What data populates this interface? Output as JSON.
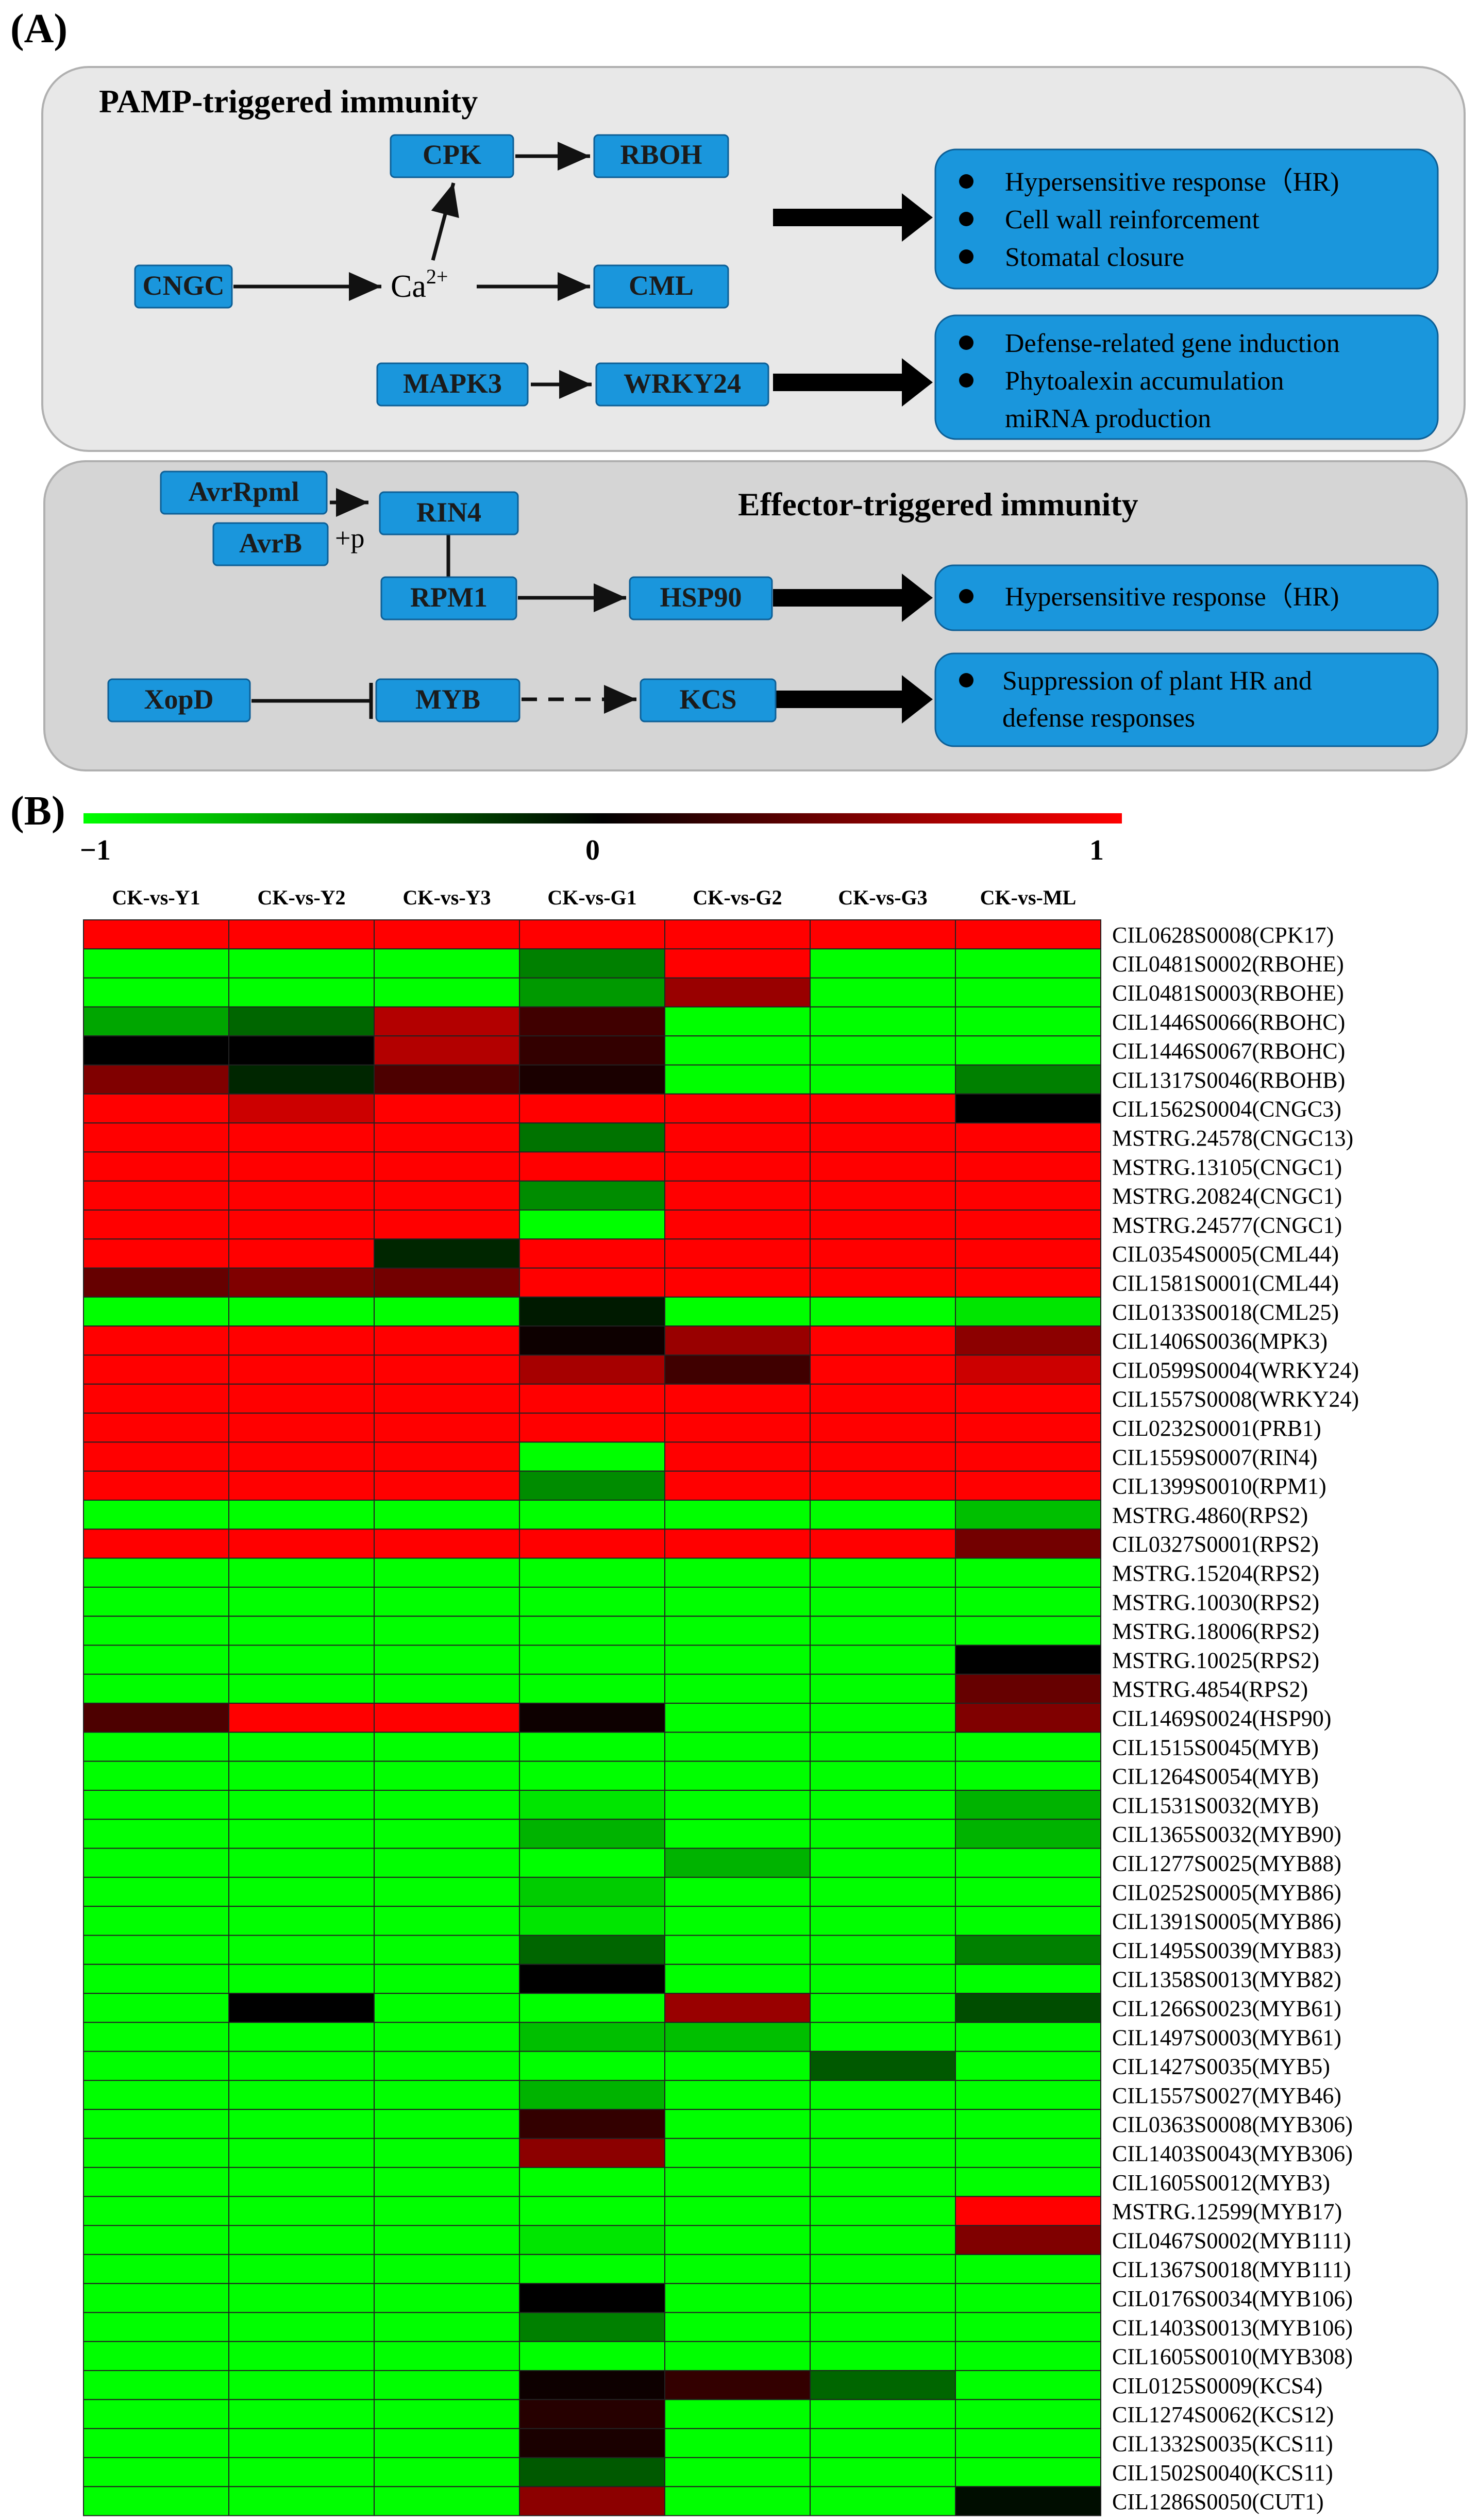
{
  "panelA": {
    "label": "(A)",
    "pti_title": "PAMP-triggered immunity",
    "eti_title": "Effector-triggered immunity",
    "nodes": {
      "cpk": "CPK",
      "rboh": "RBOH",
      "cngc": "CNGC",
      "ca": "Ca",
      "ca_sup": "2+",
      "cml": "CML",
      "mapk3": "MAPK3",
      "wrky24": "WRKY24",
      "avrrpml": "AvrRpml",
      "avrb": "AvrB",
      "plus_p": "+p",
      "rin4": "RIN4",
      "rpm1": "RPM1",
      "hsp90": "HSP90",
      "xopd": "XopD",
      "myb": "MYB",
      "kcs": "KCS"
    },
    "outcome1": [
      "Hypersensitive response（HR)",
      "Cell wall reinforcement",
      "Stomatal closure"
    ],
    "outcome2": [
      "Defense-related gene induction",
      "Phytoalexin accumulation",
      "miRNA production"
    ],
    "outcome3": [
      "Hypersensitive response（HR)"
    ],
    "outcome4": [
      "Suppression of plant HR and",
      "defense responses"
    ]
  },
  "panelB": {
    "label": "(B)",
    "scale_min": "−1",
    "scale_mid": "0",
    "scale_max": "1",
    "colors": {
      "low": "#00ff00",
      "mid": "#000000",
      "high": "#ff0000",
      "box": "#1a96dc",
      "bg_pti": "#e8e8e8",
      "bg_eti": "#d5d5d5"
    }
  },
  "chart_data": {
    "type": "heatmap",
    "vmin": -1,
    "vmax": 1,
    "columns": [
      "CK-vs-Y1",
      "CK-vs-Y2",
      "CK-vs-Y3",
      "CK-vs-G1",
      "CK-vs-G2",
      "CK-vs-G3",
      "CK-vs-ML"
    ],
    "rows": [
      {
        "gene": "CIL0628S0008(CPK17)",
        "values": [
          1,
          1,
          1,
          1,
          1,
          1,
          1
        ]
      },
      {
        "gene": "CIL0481S0002(RBOHE)",
        "values": [
          -1,
          -1,
          -1,
          -0.5,
          1,
          -1,
          -1
        ]
      },
      {
        "gene": "CIL0481S0003(RBOHE)",
        "values": [
          -1,
          -1,
          -1,
          -0.6,
          0.6,
          -1,
          -1
        ]
      },
      {
        "gene": "CIL1446S0066(RBOHC)",
        "values": [
          -0.65,
          -0.4,
          0.7,
          0.25,
          -1,
          -1,
          -1
        ]
      },
      {
        "gene": "CIL1446S0067(RBOHC)",
        "values": [
          0,
          0,
          0.7,
          0.2,
          -1,
          -1,
          -1
        ]
      },
      {
        "gene": "CIL1317S0046(RBOHB)",
        "values": [
          0.5,
          -0.15,
          0.3,
          0.1,
          -1,
          -1,
          -0.5
        ]
      },
      {
        "gene": "CIL1562S0004(CNGC3)",
        "values": [
          1,
          0.8,
          1,
          1,
          1,
          1,
          0
        ]
      },
      {
        "gene": "MSTRG.24578(CNGC13)",
        "values": [
          1,
          1,
          1,
          -0.45,
          1,
          1,
          1
        ]
      },
      {
        "gene": "MSTRG.13105(CNGC1)",
        "values": [
          1,
          1,
          1,
          1,
          1,
          1,
          1
        ]
      },
      {
        "gene": "MSTRG.20824(CNGC1)",
        "values": [
          1,
          1,
          1,
          -0.55,
          1,
          1,
          1
        ]
      },
      {
        "gene": "MSTRG.24577(CNGC1)",
        "values": [
          1,
          1,
          1,
          -1,
          1,
          1,
          1
        ]
      },
      {
        "gene": "CIL0354S0005(CML44)",
        "values": [
          1,
          1,
          -0.15,
          1,
          1,
          1,
          1
        ]
      },
      {
        "gene": "CIL1581S0001(CML44)",
        "values": [
          0.4,
          0.5,
          0.45,
          1,
          1,
          1,
          1
        ]
      },
      {
        "gene": "CIL0133S0018(CML25)",
        "values": [
          -1,
          -1,
          -1,
          -0.1,
          -1,
          -1,
          -0.9
        ]
      },
      {
        "gene": "CIL1406S0036(MPK3)",
        "values": [
          1,
          1,
          1,
          0.05,
          0.6,
          1,
          0.55
        ]
      },
      {
        "gene": "CIL0599S0004(WRKY24)",
        "values": [
          1,
          1,
          1,
          0.65,
          0.25,
          1,
          0.8
        ]
      },
      {
        "gene": "CIL1557S0008(WRKY24)",
        "values": [
          1,
          1,
          1,
          1,
          1,
          1,
          1
        ]
      },
      {
        "gene": "CIL0232S0001(PRB1)",
        "values": [
          1,
          1,
          1,
          1,
          1,
          1,
          1
        ]
      },
      {
        "gene": "CIL1559S0007(RIN4)",
        "values": [
          1,
          1,
          1,
          -1,
          1,
          1,
          1
        ]
      },
      {
        "gene": "CIL1399S0010(RPM1)",
        "values": [
          1,
          1,
          1,
          -0.55,
          1,
          1,
          1
        ]
      },
      {
        "gene": "MSTRG.4860(RPS2)",
        "values": [
          -1,
          -1,
          -1,
          -1,
          -1,
          -1,
          -0.75
        ]
      },
      {
        "gene": "CIL0327S0001(RPS2)",
        "values": [
          1,
          1,
          1,
          1,
          1,
          1,
          0.45
        ]
      },
      {
        "gene": "MSTRG.15204(RPS2)",
        "values": [
          -1,
          -1,
          -1,
          -1,
          -1,
          -1,
          -1
        ]
      },
      {
        "gene": "MSTRG.10030(RPS2)",
        "values": [
          -1,
          -1,
          -1,
          -1,
          -1,
          -1,
          -1
        ]
      },
      {
        "gene": "MSTRG.18006(RPS2)",
        "values": [
          -1,
          -1,
          -1,
          -1,
          -1,
          -1,
          -1
        ]
      },
      {
        "gene": "MSTRG.10025(RPS2)",
        "values": [
          -1,
          -1,
          -1,
          -1,
          -1,
          -1,
          0
        ]
      },
      {
        "gene": "MSTRG.4854(RPS2)",
        "values": [
          -1,
          -1,
          -1,
          -1,
          -1,
          -1,
          0.4
        ]
      },
      {
        "gene": "CIL1469S0024(HSP90)",
        "values": [
          0.3,
          1,
          1,
          0.05,
          -1,
          -1,
          0.5
        ]
      },
      {
        "gene": "CIL1515S0045(MYB)",
        "values": [
          -1,
          -1,
          -1,
          -1,
          -1,
          -1,
          -1
        ]
      },
      {
        "gene": "CIL1264S0054(MYB)",
        "values": [
          -1,
          -1,
          -1,
          -1,
          -1,
          -1,
          -1
        ]
      },
      {
        "gene": "CIL1531S0032(MYB)",
        "values": [
          -1,
          -1,
          -1,
          -0.9,
          -1,
          -1,
          -0.7
        ]
      },
      {
        "gene": "CIL1365S0032(MYB90)",
        "values": [
          -1,
          -1,
          -1,
          -0.7,
          -1,
          -1,
          -0.7
        ]
      },
      {
        "gene": "CIL1277S0025(MYB88)",
        "values": [
          -1,
          -1,
          -1,
          -1,
          -0.7,
          -1,
          -1
        ]
      },
      {
        "gene": "CIL0252S0005(MYB86)",
        "values": [
          -1,
          -1,
          -1,
          -0.8,
          -1,
          -1,
          -1
        ]
      },
      {
        "gene": "CIL1391S0005(MYB86)",
        "values": [
          -1,
          -1,
          -1,
          -0.9,
          -1,
          -1,
          -1
        ]
      },
      {
        "gene": "CIL1495S0039(MYB83)",
        "values": [
          -1,
          -1,
          -1,
          -0.4,
          -1,
          -1,
          -0.5
        ]
      },
      {
        "gene": "CIL1358S0013(MYB82)",
        "values": [
          -1,
          -1,
          -1,
          0,
          -1,
          -1,
          -1
        ]
      },
      {
        "gene": "CIL1266S0023(MYB61)",
        "values": [
          -1,
          0,
          -1,
          -1,
          0.6,
          -1,
          -0.3
        ]
      },
      {
        "gene": "CIL1497S0003(MYB61)",
        "values": [
          -1,
          -1,
          -1,
          -0.75,
          -0.75,
          -1,
          -1
        ]
      },
      {
        "gene": "CIL1427S0035(MYB5)",
        "values": [
          -1,
          -1,
          -1,
          -1,
          -1,
          -0.35,
          -1
        ]
      },
      {
        "gene": "CIL1557S0027(MYB46)",
        "values": [
          -1,
          -1,
          -1,
          -0.7,
          -1,
          -1,
          -1
        ]
      },
      {
        "gene": "CIL0363S0008(MYB306)",
        "values": [
          -1,
          -1,
          -1,
          0.2,
          -1,
          -1,
          -1
        ]
      },
      {
        "gene": "CIL1403S0043(MYB306)",
        "values": [
          -1,
          -1,
          -1,
          0.55,
          -1,
          -1,
          -1
        ]
      },
      {
        "gene": "CIL1605S0012(MYB3)",
        "values": [
          -1,
          -1,
          -1,
          -1,
          -1,
          -1,
          -1
        ]
      },
      {
        "gene": "MSTRG.12599(MYB17)",
        "values": [
          -1,
          -1,
          -1,
          -1,
          -1,
          -1,
          1
        ]
      },
      {
        "gene": "CIL0467S0002(MYB111)",
        "values": [
          -1,
          -1,
          -1,
          -0.9,
          -1,
          -1,
          0.5
        ]
      },
      {
        "gene": "CIL1367S0018(MYB111)",
        "values": [
          -1,
          -1,
          -1,
          -1,
          -1,
          -1,
          -1
        ]
      },
      {
        "gene": "CIL0176S0034(MYB106)",
        "values": [
          -1,
          -1,
          -1,
          0,
          -1,
          -1,
          -1
        ]
      },
      {
        "gene": "CIL1403S0013(MYB106)",
        "values": [
          -1,
          -1,
          -1,
          -0.5,
          -1,
          -1,
          -1
        ]
      },
      {
        "gene": "CIL1605S0010(MYB308)",
        "values": [
          -1,
          -1,
          -1,
          -1,
          -1,
          -1,
          -1
        ]
      },
      {
        "gene": "CIL0125S0009(KCS4)",
        "values": [
          -1,
          -1,
          -1,
          0.05,
          0.2,
          -0.4,
          -1
        ]
      },
      {
        "gene": "CIL1274S0062(KCS12)",
        "values": [
          -1,
          -1,
          -1,
          0.15,
          -1,
          -1,
          -1
        ]
      },
      {
        "gene": "CIL1332S0035(KCS11)",
        "values": [
          -1,
          -1,
          -1,
          0.1,
          -1,
          -1,
          -1
        ]
      },
      {
        "gene": "CIL1502S0040(KCS11)",
        "values": [
          -1,
          -1,
          -1,
          -0.35,
          -1,
          -1,
          -1
        ]
      },
      {
        "gene": "CIL1286S0050(CUT1)",
        "values": [
          -1,
          -1,
          -1,
          0.55,
          -1,
          -1,
          -0.05
        ]
      }
    ]
  }
}
